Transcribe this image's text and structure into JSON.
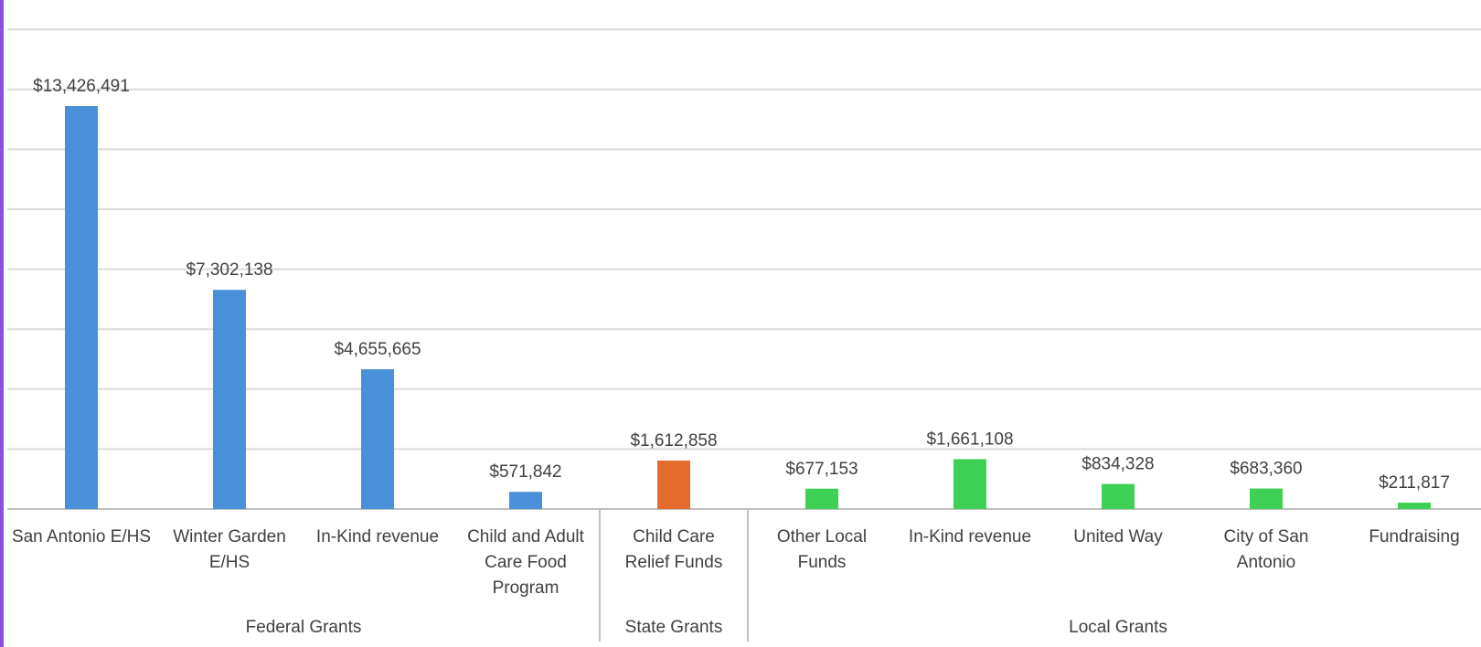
{
  "chart_data": {
    "type": "bar",
    "title": "",
    "xlabel": "",
    "ylabel": "",
    "ylim": [
      0,
      16500000
    ],
    "grid": true,
    "legend": "none",
    "colors": {
      "Federal Grants": "#4a90d9",
      "State Grants": "#e36c2c",
      "Local Grants": "#3ecf55"
    },
    "groups": [
      {
        "name": "Federal Grants",
        "items": [
          {
            "label": "San Antonio E/HS",
            "value": 13426491,
            "display": "$13,426,491"
          },
          {
            "label": "Winter Garden E/HS",
            "value": 7302138,
            "display": "$7,302,138"
          },
          {
            "label": "In-Kind revenue",
            "value": 4655665,
            "display": "$4,655,665"
          },
          {
            "label": "Child and Adult Care Food Program",
            "value": 571842,
            "display": "$571,842"
          }
        ]
      },
      {
        "name": "State Grants",
        "items": [
          {
            "label": "Child Care Relief Funds",
            "value": 1612858,
            "display": "$1,612,858"
          }
        ]
      },
      {
        "name": "Local Grants",
        "items": [
          {
            "label": "Other Local Funds",
            "value": 677153,
            "display": "$677,153"
          },
          {
            "label": "In-Kind revenue",
            "value": 1661108,
            "display": "$1,661,108"
          },
          {
            "label": "United Way",
            "value": 834328,
            "display": "$834,328"
          },
          {
            "label": "City of San Antonio",
            "value": 683360,
            "display": "$683,360"
          },
          {
            "label": "Fundraising",
            "value": 211817,
            "display": "$211,817"
          }
        ]
      }
    ]
  }
}
